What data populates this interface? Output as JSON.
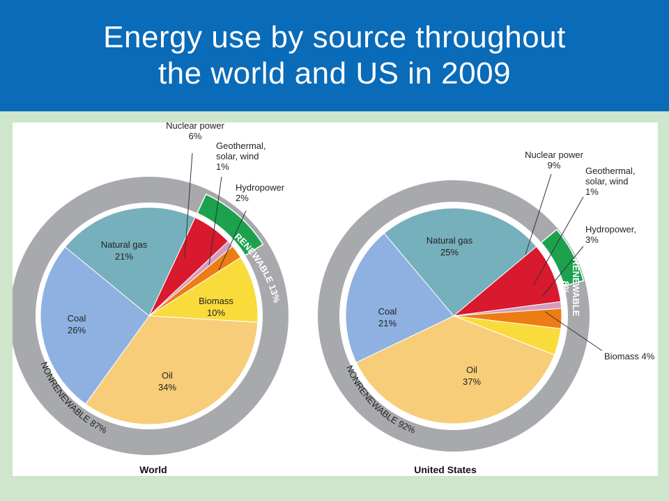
{
  "title": {
    "line1": "Energy use by source throughout",
    "line2": "the world and US in 2009"
  },
  "chart_data": [
    {
      "type": "pie",
      "caption": "World",
      "slices": [
        {
          "name": "Nuclear power",
          "value": 6,
          "label": "6%",
          "color": "#d8192e"
        },
        {
          "name": "Geothermal, solar, wind",
          "value": 1,
          "label": "1%",
          "color": "#d59cc0"
        },
        {
          "name": "Hydropower",
          "value": 2,
          "label": "2%",
          "color": "#ed7d13"
        },
        {
          "name": "Biomass",
          "value": 10,
          "label": "10%",
          "color": "#fadb3c"
        },
        {
          "name": "Oil",
          "value": 34,
          "label": "34%",
          "color": "#f7cd79"
        },
        {
          "name": "Coal",
          "value": 26,
          "label": "26%",
          "color": "#8eb1e1"
        },
        {
          "name": "Natural gas",
          "value": 21,
          "label": "21%",
          "color": "#76b0bc"
        }
      ],
      "groups": [
        {
          "name": "RENEWABLE 13%",
          "value": 13,
          "color": "#1ca24d"
        },
        {
          "name": "NONRENEWABLE 87%",
          "value": 87,
          "color": "#a8a9ad"
        }
      ]
    },
    {
      "type": "pie",
      "caption": "United States",
      "slices": [
        {
          "name": "Nuclear power",
          "value": 9,
          "label": "9%",
          "color": "#d8192e"
        },
        {
          "name": "Geothermal, solar, wind",
          "value": 1,
          "label": "1%",
          "color": "#d59cc0"
        },
        {
          "name": "Hydropower,",
          "value": 3,
          "label": "3%",
          "color": "#ed7d13"
        },
        {
          "name": "Biomass",
          "value": 4,
          "label": "4%",
          "color": "#fadb3c"
        },
        {
          "name": "Oil",
          "value": 37,
          "label": "37%",
          "color": "#f7cd79"
        },
        {
          "name": "Coal",
          "value": 21,
          "label": "21%",
          "color": "#8eb1e1"
        },
        {
          "name": "Natural gas",
          "value": 25,
          "label": "25%",
          "color": "#76b0bc"
        }
      ],
      "groups": [
        {
          "name": "RENEWABLE",
          "value": 8,
          "value_label": "8%",
          "color": "#1ca24d"
        },
        {
          "name": "NONRENEWABLE 92%",
          "value": 92,
          "color": "#a8a9ad"
        }
      ]
    }
  ]
}
